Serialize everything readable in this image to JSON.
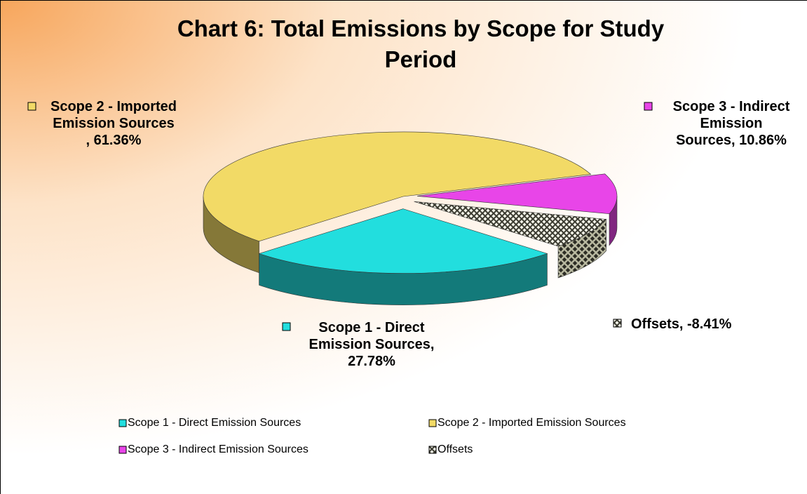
{
  "chart_data": {
    "type": "pie3d",
    "title": "Chart 6: Total Emissions by Scope for Study Period",
    "categories": [
      "Scope 1 - Direct Emission Sources",
      "Scope 2 - Imported Emission Sources",
      "Scope 3 - Indirect Emission Sources",
      "Offsets"
    ],
    "values": [
      27.78,
      61.36,
      10.86,
      -8.41
    ],
    "value_labels": [
      "Scope 1 - Direct Emission Sources, 27.78%",
      "Scope 2 - Imported Emission Sources , 61.36%",
      "Scope 3 - Indirect Emission Sources, 10.86%",
      "Offsets, -8.41%"
    ],
    "colors": [
      "#22dede",
      "#f2da66",
      "#e845e8",
      "pattern"
    ],
    "legend": "bottom"
  }
}
